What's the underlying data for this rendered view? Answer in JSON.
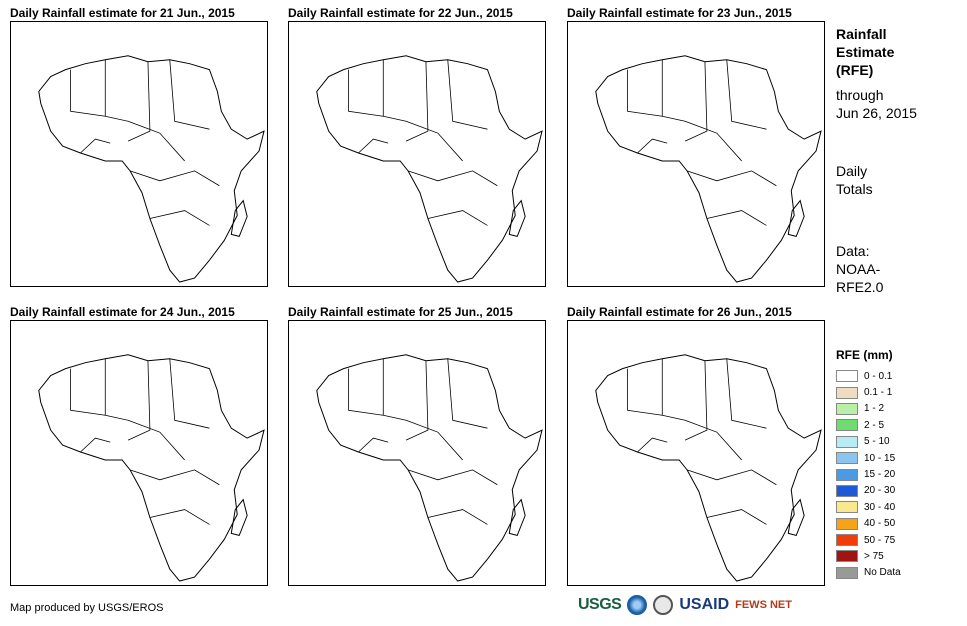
{
  "panels": [
    {
      "title": "Daily Rainfall estimate for 21 Jun., 2015"
    },
    {
      "title": "Daily Rainfall estimate for 22 Jun., 2015"
    },
    {
      "title": "Daily Rainfall estimate for 23 Jun., 2015"
    },
    {
      "title": "Daily Rainfall estimate for 24 Jun., 2015"
    },
    {
      "title": "Daily Rainfall estimate for 25 Jun., 2015"
    },
    {
      "title": "Daily Rainfall estimate for 26 Jun., 2015"
    }
  ],
  "sidebar": {
    "heading_1": "Rainfall",
    "heading_2": "Estimate",
    "heading_3": "(RFE)",
    "through": "through",
    "through_date": "Jun 26, 2015",
    "daily_1": "Daily",
    "daily_2": "Totals",
    "data_1": "Data:",
    "data_2": "NOAA-",
    "data_3": "RFE2.0"
  },
  "legend": {
    "title": "RFE (mm)",
    "items": [
      {
        "label": "0 - 0.1",
        "color": "#ffffff"
      },
      {
        "label": "0.1 - 1",
        "color": "#f0dcc0"
      },
      {
        "label": "1 - 2",
        "color": "#b8f0a8"
      },
      {
        "label": "2 - 5",
        "color": "#6fdc6f"
      },
      {
        "label": "5 - 10",
        "color": "#b8ecf4"
      },
      {
        "label": "10 - 15",
        "color": "#8cc4f0"
      },
      {
        "label": "15 - 20",
        "color": "#4a9ae6"
      },
      {
        "label": "20 - 30",
        "color": "#1e5ad8"
      },
      {
        "label": "30 - 40",
        "color": "#fbe78c"
      },
      {
        "label": "40 - 50",
        "color": "#f7a21c"
      },
      {
        "label": "50 - 75",
        "color": "#f23c0a"
      },
      {
        "label": "> 75",
        "color": "#a01414"
      },
      {
        "label": "No Data",
        "color": "#999999"
      }
    ]
  },
  "footer": {
    "credit": "Map produced by USGS/EROS"
  },
  "logos": {
    "usgs": "USGS",
    "usaid": "USAID",
    "fews": "FEWS NET"
  }
}
